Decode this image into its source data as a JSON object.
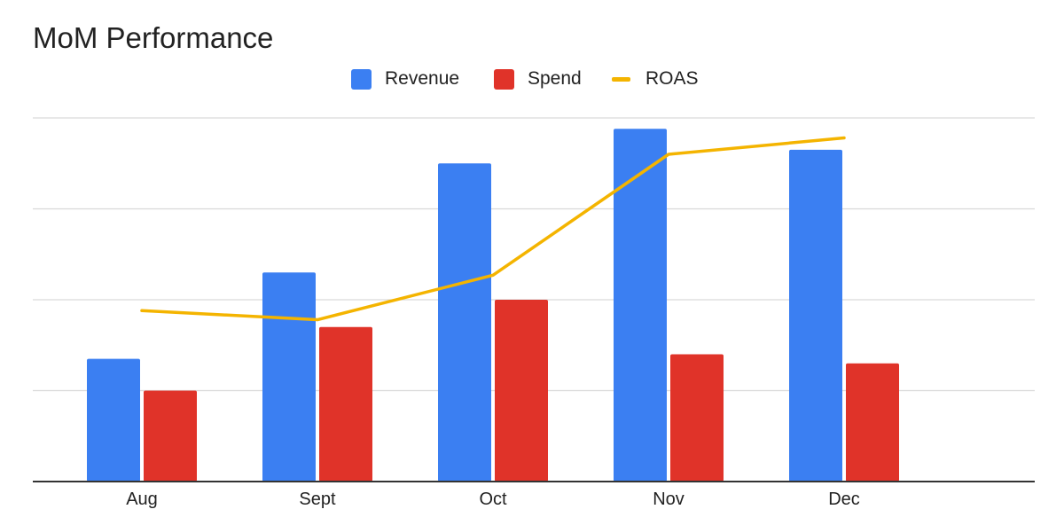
{
  "chart_data": {
    "type": "bar",
    "title": "MoM Performance",
    "categories": [
      "Aug",
      "Sept",
      "Oct",
      "Nov",
      "Dec"
    ],
    "series": [
      {
        "name": "Revenue",
        "type": "bar",
        "color": "#3b7ff2",
        "values": [
          1.35,
          2.3,
          3.5,
          3.88,
          3.65
        ]
      },
      {
        "name": "Spend",
        "type": "bar",
        "color": "#e03329",
        "values": [
          1.0,
          1.7,
          2.0,
          1.4,
          1.3
        ]
      },
      {
        "name": "ROAS",
        "type": "line",
        "color": "#f4b400",
        "values": [
          1.88,
          1.78,
          2.27,
          3.6,
          3.78
        ]
      }
    ],
    "ylim": [
      0,
      4
    ],
    "grid": true,
    "legend": "top-center",
    "xlabel": "",
    "ylabel": ""
  }
}
